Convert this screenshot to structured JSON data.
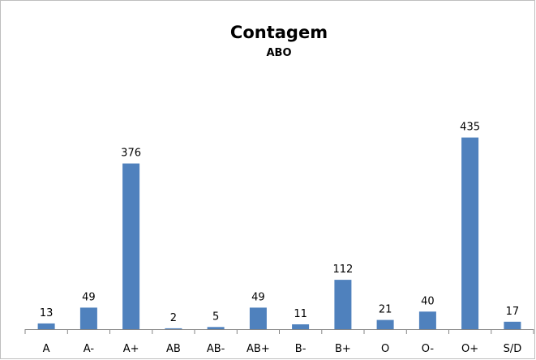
{
  "chart_data": {
    "type": "bar",
    "title": "Contagem",
    "subtitle": "ABO",
    "categories": [
      "A",
      "A-",
      "A+",
      "AB",
      "AB-",
      "AB+",
      "B-",
      "B+",
      "O",
      "O-",
      "O+",
      "S/D"
    ],
    "values": [
      13,
      49,
      376,
      2,
      5,
      49,
      11,
      112,
      21,
      40,
      435,
      17
    ],
    "ylim": [
      0,
      500
    ],
    "grid": false,
    "legend": "none",
    "bar_color": "#4f81bd"
  }
}
